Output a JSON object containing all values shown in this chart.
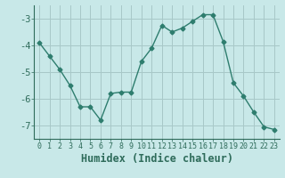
{
  "x": [
    0,
    1,
    2,
    3,
    4,
    5,
    6,
    7,
    8,
    9,
    10,
    11,
    12,
    13,
    14,
    15,
    16,
    17,
    18,
    19,
    20,
    21,
    22,
    23
  ],
  "y": [
    -3.9,
    -4.4,
    -4.9,
    -5.5,
    -6.3,
    -6.3,
    -6.8,
    -5.8,
    -5.75,
    -5.75,
    -4.6,
    -4.1,
    -3.25,
    -3.5,
    -3.35,
    -3.1,
    -2.85,
    -2.85,
    -3.85,
    -5.4,
    -5.9,
    -6.5,
    -7.05,
    -7.15
  ],
  "line_color": "#2e7d6e",
  "marker": "D",
  "marker_size": 2.5,
  "bg_color": "#c8e8e8",
  "grid_color": "#a8c8c8",
  "xlabel": "Humidex (Indice chaleur)",
  "ylim": [
    -7.5,
    -2.5
  ],
  "xlim": [
    -0.5,
    23.5
  ],
  "yticks": [
    -7,
    -6,
    -5,
    -4,
    -3
  ],
  "xticks": [
    0,
    1,
    2,
    3,
    4,
    5,
    6,
    7,
    8,
    9,
    10,
    11,
    12,
    13,
    14,
    15,
    16,
    17,
    18,
    19,
    20,
    21,
    22,
    23
  ],
  "tick_color": "#2e6b5a",
  "label_color": "#2e6b5a",
  "font_size": 7.5,
  "xlabel_fontsize": 8.5
}
